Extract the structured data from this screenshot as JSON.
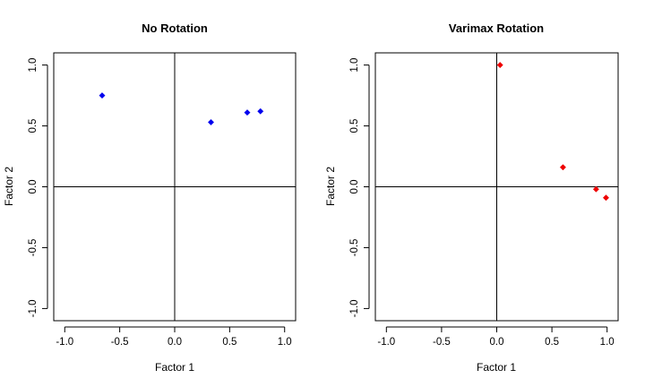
{
  "chart_data": [
    {
      "type": "scatter",
      "title": "No Rotation",
      "xlabel": "Factor 1",
      "ylabel": "Factor 2",
      "xlim": [
        -1.1,
        1.1
      ],
      "ylim": [
        -1.1,
        1.1
      ],
      "xticks": [
        -1.0,
        -0.5,
        0.0,
        0.5,
        1.0
      ],
      "yticks": [
        -1.0,
        -0.5,
        0.0,
        0.5,
        1.0
      ],
      "xtick_labels": [
        "-1.0",
        "-0.5",
        "0.0",
        "0.5",
        "1.0"
      ],
      "ytick_labels": [
        "-1.0",
        "-0.5",
        "0.0",
        "0.5",
        "1.0"
      ],
      "reference_lines": {
        "x": 0,
        "y": 0
      },
      "grid": false,
      "color": "#0000ee",
      "points": [
        {
          "x": -0.66,
          "y": 0.75
        },
        {
          "x": 0.33,
          "y": 0.53
        },
        {
          "x": 0.66,
          "y": 0.61
        },
        {
          "x": 0.78,
          "y": 0.62
        }
      ]
    },
    {
      "type": "scatter",
      "title": "Varimax Rotation",
      "xlabel": "Factor 1",
      "ylabel": "Factor 2",
      "xlim": [
        -1.1,
        1.1
      ],
      "ylim": [
        -1.1,
        1.1
      ],
      "xticks": [
        -1.0,
        -0.5,
        0.0,
        0.5,
        1.0
      ],
      "yticks": [
        -1.0,
        -0.5,
        0.0,
        0.5,
        1.0
      ],
      "xtick_labels": [
        "-1.0",
        "-0.5",
        "0.0",
        "0.5",
        "1.0"
      ],
      "ytick_labels": [
        "-1.0",
        "-0.5",
        "0.0",
        "0.5",
        "1.0"
      ],
      "reference_lines": {
        "x": 0,
        "y": 0
      },
      "grid": false,
      "color": "#ee0000",
      "points": [
        {
          "x": 0.03,
          "y": 1.0
        },
        {
          "x": 0.6,
          "y": 0.16
        },
        {
          "x": 0.9,
          "y": -0.02
        },
        {
          "x": 0.99,
          "y": -0.09
        }
      ]
    }
  ]
}
